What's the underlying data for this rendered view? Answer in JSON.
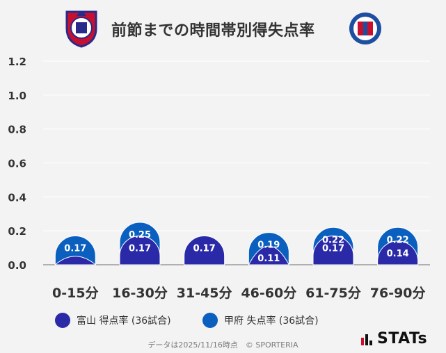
{
  "header": {
    "title": "前節までの時間帯別得失点率",
    "home_crest_icon": "toyama-club-crest-icon",
    "away_crest_icon": "kofu-club-crest-icon"
  },
  "chart_data": {
    "type": "bar",
    "title": "前節までの時間帯別得失点率",
    "categories": [
      "0-15分",
      "16-30分",
      "31-45分",
      "46-60分",
      "61-75分",
      "76-90分"
    ],
    "series": [
      {
        "name": "富山 得点率 (36試合)",
        "values": [
          0.05,
          0.17,
          0.17,
          0.11,
          0.17,
          0.14
        ],
        "labels": [
          "",
          "0.17",
          "0.17",
          "0.11",
          "0.17",
          "0.14"
        ],
        "color": "#2a2aa8"
      },
      {
        "name": "甲府 失点率 (36試合)",
        "values": [
          0.17,
          0.25,
          0.17,
          0.19,
          0.22,
          0.22
        ],
        "labels": [
          "0.17",
          "0.25",
          "0.17",
          "0.19",
          "0.22",
          "0.22"
        ],
        "color": "#0a5fbf"
      }
    ],
    "y_ticks": [
      "1.2",
      "1.0",
      "0.8",
      "0.6",
      "0.4",
      "0.2",
      "0.0"
    ],
    "ylim": [
      0,
      1.2
    ],
    "grid": true,
    "legend": "bottom"
  },
  "footer": {
    "note": "データは2025/11/16時点　© SPORTERIA",
    "brand": "STATs",
    "brand_icon": "stats-bars-icon"
  }
}
